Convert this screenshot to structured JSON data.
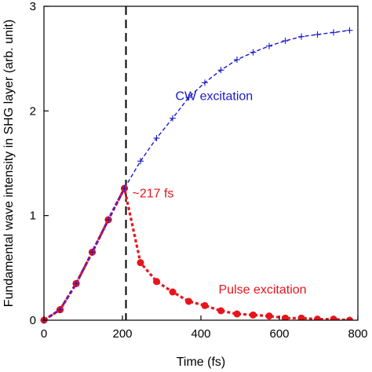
{
  "chart_data": {
    "type": "line",
    "title": "",
    "xlabel": "Time (fs)",
    "ylabel": "Fundamental wave intensity in SHG layer (arb. unit)",
    "xlim": [
      0,
      800
    ],
    "ylim": [
      0,
      3
    ],
    "xticks": [
      0,
      200,
      400,
      600,
      800
    ],
    "yticks": [
      0,
      1,
      2,
      3
    ],
    "xtick_labels": [
      "0",
      "200",
      "400",
      "600",
      "800"
    ],
    "ytick_labels": [
      "0",
      "1",
      "2",
      "3"
    ],
    "grid": false,
    "series": [
      {
        "name": "CW excitation",
        "color": "#1a1acc",
        "marker": "plus",
        "line_style": "dashed",
        "x": [
          0,
          41,
          82,
          123,
          164,
          205,
          246,
          287,
          328,
          369,
          410,
          451,
          492,
          533,
          574,
          615,
          656,
          697,
          738,
          779
        ],
        "y": [
          0,
          0.1,
          0.35,
          0.65,
          0.96,
          1.26,
          1.52,
          1.74,
          1.93,
          2.13,
          2.27,
          2.39,
          2.49,
          2.56,
          2.62,
          2.67,
          2.71,
          2.73,
          2.75,
          2.77
        ]
      },
      {
        "name": "Pulse excitation",
        "color": "#e8141c",
        "marker": "circle",
        "line_style": "dotted",
        "x": [
          0,
          41,
          82,
          123,
          164,
          205,
          246,
          287,
          328,
          369,
          410,
          451,
          492,
          533,
          574,
          615,
          656,
          697,
          738,
          779
        ],
        "y": [
          0,
          0.1,
          0.35,
          0.65,
          0.96,
          1.26,
          0.55,
          0.37,
          0.27,
          0.18,
          0.14,
          0.09,
          0.06,
          0.05,
          0.04,
          0.02,
          0.02,
          0.01,
          0.01,
          0.0
        ]
      }
    ],
    "vline": {
      "x": 209,
      "color": "#000000",
      "line_style": "dashed"
    },
    "annotations": [
      {
        "text": "CW excitation",
        "color": "#1a1acc",
        "x": 335,
        "y": 2.15
      },
      {
        "text": "~217 fs",
        "color": "#e8141c",
        "x": 225,
        "y": 1.22
      },
      {
        "text": "Pulse excitation",
        "color": "#e8141c",
        "x": 445,
        "y": 0.3
      }
    ]
  }
}
